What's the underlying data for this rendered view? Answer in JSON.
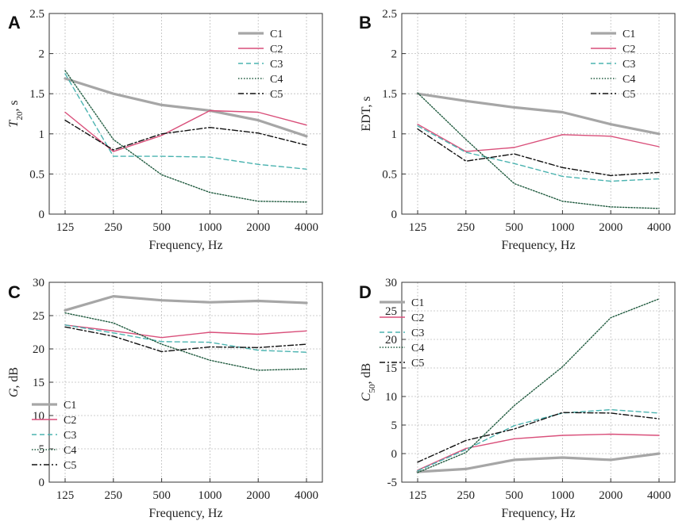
{
  "series_styles": [
    {
      "name": "C1",
      "color": "#a6a6a6",
      "width": 3.2,
      "dash": ""
    },
    {
      "name": "C2",
      "color": "#d94f7a",
      "width": 1.4,
      "dash": ""
    },
    {
      "name": "C3",
      "color": "#4bb3b0",
      "width": 1.4,
      "dash": "6 4"
    },
    {
      "name": "C4",
      "color": "#1f5a3e",
      "width": 1.4,
      "dash": "1.5 2"
    },
    {
      "name": "C5",
      "color": "#111111",
      "width": 1.4,
      "dash": "7 3 2 3"
    }
  ],
  "chart_data": [
    {
      "panel": "A",
      "type": "line",
      "xlabel": "Frequency, Hz",
      "ylabel": "T20, s",
      "categories": [
        "125",
        "250",
        "500",
        "1000",
        "2000",
        "4000"
      ],
      "ylim": [
        0,
        2.5
      ],
      "yticks": [
        "0",
        "0.5",
        "1",
        "1.5",
        "2",
        "2.5"
      ],
      "grid": true,
      "legend_position": "top-right",
      "series": [
        {
          "name": "C1",
          "values": [
            1.69,
            1.5,
            1.36,
            1.29,
            1.17,
            0.97
          ]
        },
        {
          "name": "C2",
          "values": [
            1.27,
            0.78,
            0.98,
            1.29,
            1.27,
            1.11
          ]
        },
        {
          "name": "C3",
          "values": [
            1.75,
            0.72,
            0.72,
            0.71,
            0.62,
            0.56
          ]
        },
        {
          "name": "C4",
          "values": [
            1.79,
            0.93,
            0.49,
            0.27,
            0.16,
            0.15
          ]
        },
        {
          "name": "C5",
          "values": [
            1.17,
            0.8,
            1.0,
            1.08,
            1.01,
            0.86
          ]
        }
      ]
    },
    {
      "panel": "B",
      "type": "line",
      "xlabel": "Frequency, Hz",
      "ylabel": "EDT, s",
      "categories": [
        "125",
        "250",
        "500",
        "1000",
        "2000",
        "4000"
      ],
      "ylim": [
        0,
        2.5
      ],
      "yticks": [
        "0",
        "0.5",
        "1",
        "1.5",
        "2",
        "2.5"
      ],
      "grid": true,
      "legend_position": "top-right",
      "series": [
        {
          "name": "C1",
          "values": [
            1.5,
            1.41,
            1.33,
            1.27,
            1.12,
            1.0
          ]
        },
        {
          "name": "C2",
          "values": [
            1.12,
            0.78,
            0.83,
            0.99,
            0.97,
            0.84
          ]
        },
        {
          "name": "C3",
          "values": [
            1.1,
            0.77,
            0.63,
            0.47,
            0.41,
            0.44
          ]
        },
        {
          "name": "C4",
          "values": [
            1.51,
            0.93,
            0.38,
            0.16,
            0.09,
            0.07
          ]
        },
        {
          "name": "C5",
          "values": [
            1.06,
            0.66,
            0.75,
            0.58,
            0.48,
            0.52
          ]
        }
      ]
    },
    {
      "panel": "C",
      "type": "line",
      "xlabel": "Frequency, Hz",
      "ylabel": "G, dB",
      "categories": [
        "125",
        "250",
        "500",
        "1000",
        "2000",
        "4000"
      ],
      "ylim": [
        0,
        30
      ],
      "yticks": [
        "0",
        "5",
        "10",
        "15",
        "20",
        "25",
        "30"
      ],
      "grid": true,
      "legend_position": "bottom-left",
      "series": [
        {
          "name": "C1",
          "values": [
            25.8,
            27.9,
            27.3,
            27.0,
            27.2,
            26.9
          ]
        },
        {
          "name": "C2",
          "values": [
            23.6,
            22.7,
            21.7,
            22.5,
            22.2,
            22.7
          ]
        },
        {
          "name": "C3",
          "values": [
            23.6,
            22.4,
            21.1,
            21.0,
            19.8,
            19.5
          ]
        },
        {
          "name": "C4",
          "values": [
            25.4,
            23.9,
            20.7,
            18.3,
            16.8,
            17.0
          ]
        },
        {
          "name": "C5",
          "values": [
            23.3,
            21.9,
            19.6,
            20.3,
            20.2,
            20.7
          ]
        }
      ]
    },
    {
      "panel": "D",
      "type": "line",
      "xlabel": "Frequency, Hz",
      "ylabel": "C50, dB",
      "categories": [
        "125",
        "250",
        "500",
        "1000",
        "2000",
        "4000"
      ],
      "ylim": [
        -5,
        30
      ],
      "yticks": [
        "-5",
        "0",
        "5",
        "10",
        "15",
        "20",
        "25",
        "30"
      ],
      "grid": true,
      "legend_position": "top-left",
      "series": [
        {
          "name": "C1",
          "values": [
            -3.2,
            -2.7,
            -1.1,
            -0.7,
            -1.1,
            0.0
          ]
        },
        {
          "name": "C2",
          "values": [
            -2.9,
            0.9,
            2.6,
            3.2,
            3.4,
            3.2
          ]
        },
        {
          "name": "C3",
          "values": [
            -3.0,
            0.7,
            4.9,
            7.1,
            7.7,
            7.1
          ]
        },
        {
          "name": "C4",
          "values": [
            -3.3,
            0.2,
            8.4,
            15.2,
            23.8,
            27.1
          ]
        },
        {
          "name": "C5",
          "values": [
            -1.5,
            2.3,
            4.3,
            7.2,
            7.1,
            6.1
          ]
        }
      ]
    }
  ]
}
